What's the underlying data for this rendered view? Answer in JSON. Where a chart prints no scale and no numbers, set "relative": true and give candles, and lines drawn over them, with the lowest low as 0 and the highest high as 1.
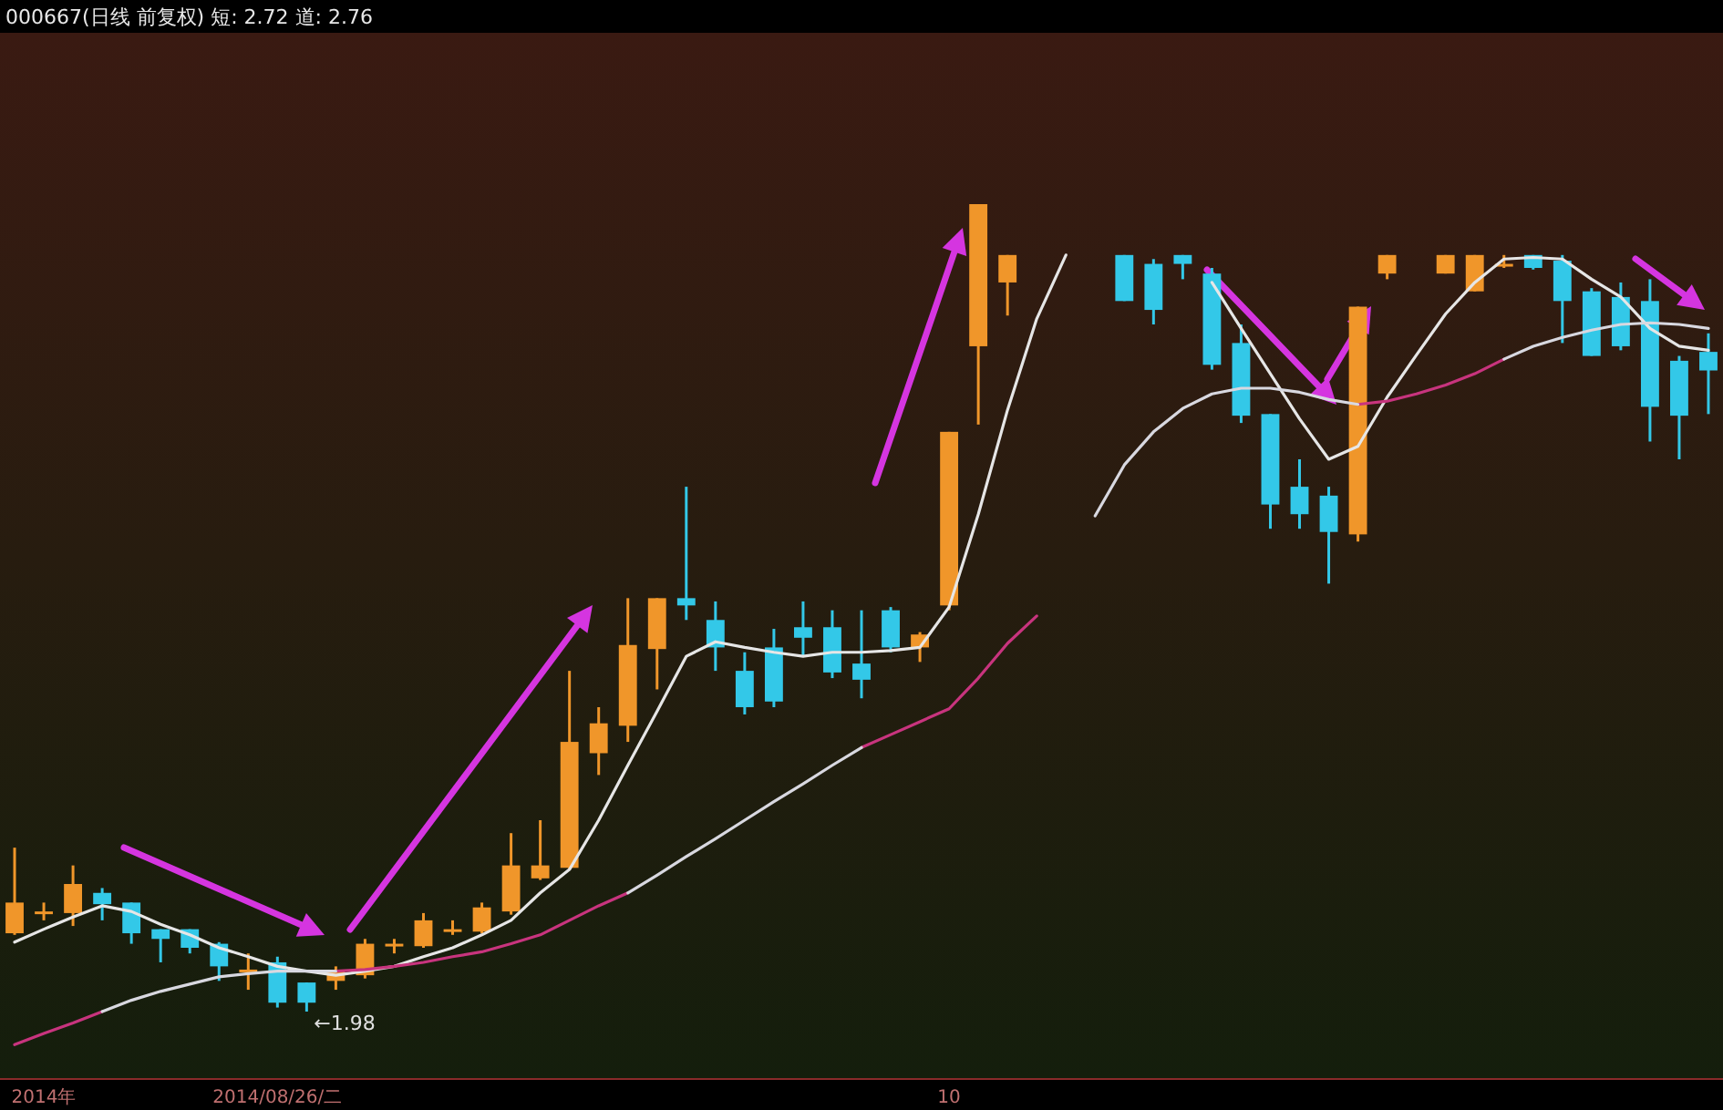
{
  "chart_data": {
    "type": "candlestick",
    "title": "000667(日线 前复权)  短: 2.72 道: 2.76",
    "relative": true,
    "categories": [
      null,
      "2014年",
      null,
      null,
      null,
      null,
      null,
      null,
      null,
      "2014/08/26/二",
      null,
      null,
      null,
      null,
      null,
      null,
      null,
      null,
      null,
      null,
      null,
      null,
      null,
      null,
      null,
      null,
      null,
      null,
      null,
      null,
      null,
      null,
      "10",
      null,
      null,
      null,
      null,
      null,
      null,
      null,
      null,
      null,
      null,
      null,
      null,
      null,
      null,
      null,
      null,
      null,
      null,
      null,
      null,
      null,
      null,
      null,
      null,
      null,
      null
    ],
    "ohlc": [
      [
        0.097,
        0.203,
        0.095,
        0.135
      ],
      [
        0.124,
        0.135,
        0.113,
        0.124
      ],
      [
        0.122,
        0.181,
        0.106,
        0.158
      ],
      [
        0.147,
        0.153,
        0.113,
        0.133
      ],
      [
        0.135,
        0.135,
        0.084,
        0.097
      ],
      [
        0.102,
        0.102,
        0.061,
        0.09
      ],
      [
        0.102,
        0.102,
        0.072,
        0.079
      ],
      [
        0.084,
        0.086,
        0.038,
        0.056
      ],
      [
        0.052,
        0.072,
        0.027,
        0.052
      ],
      [
        0.061,
        0.068,
        0.005,
        0.011
      ],
      [
        0.036,
        0.036,
        0,
        0.011
      ],
      [
        0.038,
        0.056,
        0.027,
        0.05
      ],
      [
        0.045,
        0.09,
        0.041,
        0.084
      ],
      [
        0.084,
        0.09,
        0.072,
        0.084
      ],
      [
        0.081,
        0.122,
        0.079,
        0.113
      ],
      [
        0.102,
        0.113,
        0.095,
        0.102
      ],
      [
        0.099,
        0.135,
        0.097,
        0.129
      ],
      [
        0.124,
        0.221,
        0.12,
        0.181
      ],
      [
        0.165,
        0.237,
        0.163,
        0.181
      ],
      [
        0.178,
        0.422,
        0.176,
        0.334
      ],
      [
        0.32,
        0.377,
        0.293,
        0.357
      ],
      [
        0.354,
        0.512,
        0.334,
        0.454
      ],
      [
        0.449,
        0.512,
        0.399,
        0.512
      ],
      [
        0.512,
        0.65,
        0.485,
        0.503
      ],
      [
        0.485,
        0.508,
        0.422,
        0.451
      ],
      [
        0.422,
        0.445,
        0.368,
        0.377
      ],
      [
        0.451,
        0.474,
        0.377,
        0.384
      ],
      [
        0.476,
        0.508,
        0.44,
        0.463
      ],
      [
        0.476,
        0.497,
        0.413,
        0.42
      ],
      [
        0.431,
        0.497,
        0.388,
        0.411
      ],
      [
        0.497,
        0.501,
        0.445,
        0.451
      ],
      [
        0.451,
        0.47,
        0.433,
        0.467
      ],
      [
        0.503,
        0.718,
        0.497,
        0.718
      ],
      [
        0.824,
        1,
        0.727,
        1
      ],
      [
        0.903,
        0.937,
        0.862,
        0.937
      ],
      null,
      null,
      null,
      [
        0.937,
        0.937,
        0.88,
        0.88
      ],
      [
        0.926,
        0.932,
        0.851,
        0.869
      ],
      [
        0.937,
        0.937,
        0.907,
        0.926
      ],
      [
        0.914,
        0.921,
        0.795,
        0.801
      ],
      [
        0.828,
        0.851,
        0.729,
        0.738
      ],
      [
        0.74,
        0.74,
        0.598,
        0.628
      ],
      [
        0.65,
        0.684,
        0.598,
        0.616
      ],
      [
        0.639,
        0.65,
        0.53,
        0.594
      ],
      [
        0.591,
        0.873,
        0.582,
        0.873
      ],
      [
        0.914,
        0.937,
        0.907,
        0.937
      ],
      null,
      [
        0.914,
        0.937,
        0.914,
        0.937
      ],
      [
        0.892,
        0.937,
        0.892,
        0.937
      ],
      [
        0.926,
        0.937,
        0.921,
        0.926
      ],
      [
        0.937,
        0.937,
        0.919,
        0.921
      ],
      [
        0.93,
        0.937,
        0.828,
        0.88
      ],
      [
        0.892,
        0.896,
        0.812,
        0.812
      ],
      [
        0.885,
        0.903,
        0.819,
        0.824
      ],
      [
        0.88,
        0.907,
        0.706,
        0.749
      ],
      [
        0.806,
        0.812,
        0.684,
        0.738
      ],
      [
        0.817,
        0.84,
        0.74,
        0.794
      ]
    ],
    "colors": [
      "#f0962a",
      "#f0962a",
      "#f0962a",
      "#33c8e8",
      "#33c8e8",
      "#33c8e8",
      "#33c8e8",
      "#33c8e8",
      "#f0962a",
      "#33c8e8",
      "#33c8e8",
      "#f0962a",
      "#f0962a",
      "#f0962a",
      "#f0962a",
      "#f0962a",
      "#f0962a",
      "#f0962a",
      "#f0962a",
      "#f0962a",
      "#f0962a",
      "#f0962a",
      "#f0962a",
      "#33c8e8",
      "#33c8e8",
      "#33c8e8",
      "#33c8e8",
      "#33c8e8",
      "#33c8e8",
      "#33c8e8",
      "#33c8e8",
      "#f0962a",
      "#f0962a",
      "#f0962a",
      "#f0962a",
      null,
      null,
      null,
      "#33c8e8",
      "#33c8e8",
      "#33c8e8",
      "#33c8e8",
      "#33c8e8",
      "#33c8e8",
      "#33c8e8",
      "#33c8e8",
      "#f0962a",
      "#f0962a",
      null,
      "#f0962a",
      "#f0962a",
      "#f0962a",
      "#33c8e8",
      "#33c8e8",
      "#33c8e8",
      "#33c8e8",
      "#33c8e8",
      "#33c8e8",
      "#33c8e8"
    ],
    "series": [
      {
        "type": "line",
        "color": "#e6e6e6",
        "values": [
          0.086,
          0.102,
          0.117,
          0.131,
          0.124,
          0.108,
          0.095,
          0.079,
          0.068,
          0.056,
          0.05,
          0.045,
          0.05,
          0.056,
          0.068,
          0.079,
          0.095,
          0.113,
          0.147,
          0.176,
          0.237,
          0.305,
          0.372,
          0.44,
          0.458,
          0.451,
          0.445,
          0.44,
          0.445,
          0.445,
          0.447,
          0.451,
          0.501,
          0.616,
          0.745,
          0.858,
          0.937,
          null,
          null,
          null,
          null,
          0.903,
          0.846,
          0.79,
          0.734,
          0.684,
          0.7,
          0.761,
          0.813,
          0.864,
          0.903,
          0.932,
          0.934,
          0.932,
          0.907,
          0.885,
          0.846,
          0.824,
          0.819
        ]
      },
      {
        "type": "line",
        "color": "#c8347e",
        "values": [
          -0.041,
          -0.027,
          -0.014,
          0,
          null,
          null,
          null,
          null,
          null,
          null,
          null,
          0.05,
          0.052,
          0.056,
          0.061,
          0.068,
          0.074,
          0.084,
          0.095,
          0.113,
          0.131,
          0.147,
          null,
          null,
          null,
          null,
          null,
          null,
          null,
          0.327,
          0.343,
          0.359,
          0.375,
          0.413,
          0.456,
          0.49,
          null,
          null,
          null,
          null,
          null,
          null,
          null,
          null,
          null,
          null,
          0.752,
          0.756,
          0.765,
          0.776,
          0.79,
          0.808,
          null,
          null,
          null,
          null,
          null,
          null,
          null
        ]
      },
      {
        "type": "line",
        "color": "#d8d8e0",
        "values": [
          null,
          null,
          null,
          0,
          0.014,
          0.025,
          0.034,
          0.043,
          0.047,
          0.05,
          0.05,
          0.05,
          null,
          null,
          null,
          null,
          null,
          null,
          null,
          null,
          null,
          0.147,
          0.169,
          0.192,
          0.214,
          0.237,
          0.26,
          0.282,
          0.305,
          0.327,
          null,
          null,
          null,
          null,
          null,
          null,
          null,
          0.614,
          0.677,
          0.718,
          0.747,
          0.765,
          0.772,
          0.772,
          0.767,
          0.758,
          0.752,
          null,
          null,
          null,
          null,
          0.808,
          0.824,
          0.835,
          0.844,
          0.851,
          0.853,
          0.851,
          0.846
        ]
      }
    ],
    "annotations": [
      "←1.98"
    ]
  }
}
